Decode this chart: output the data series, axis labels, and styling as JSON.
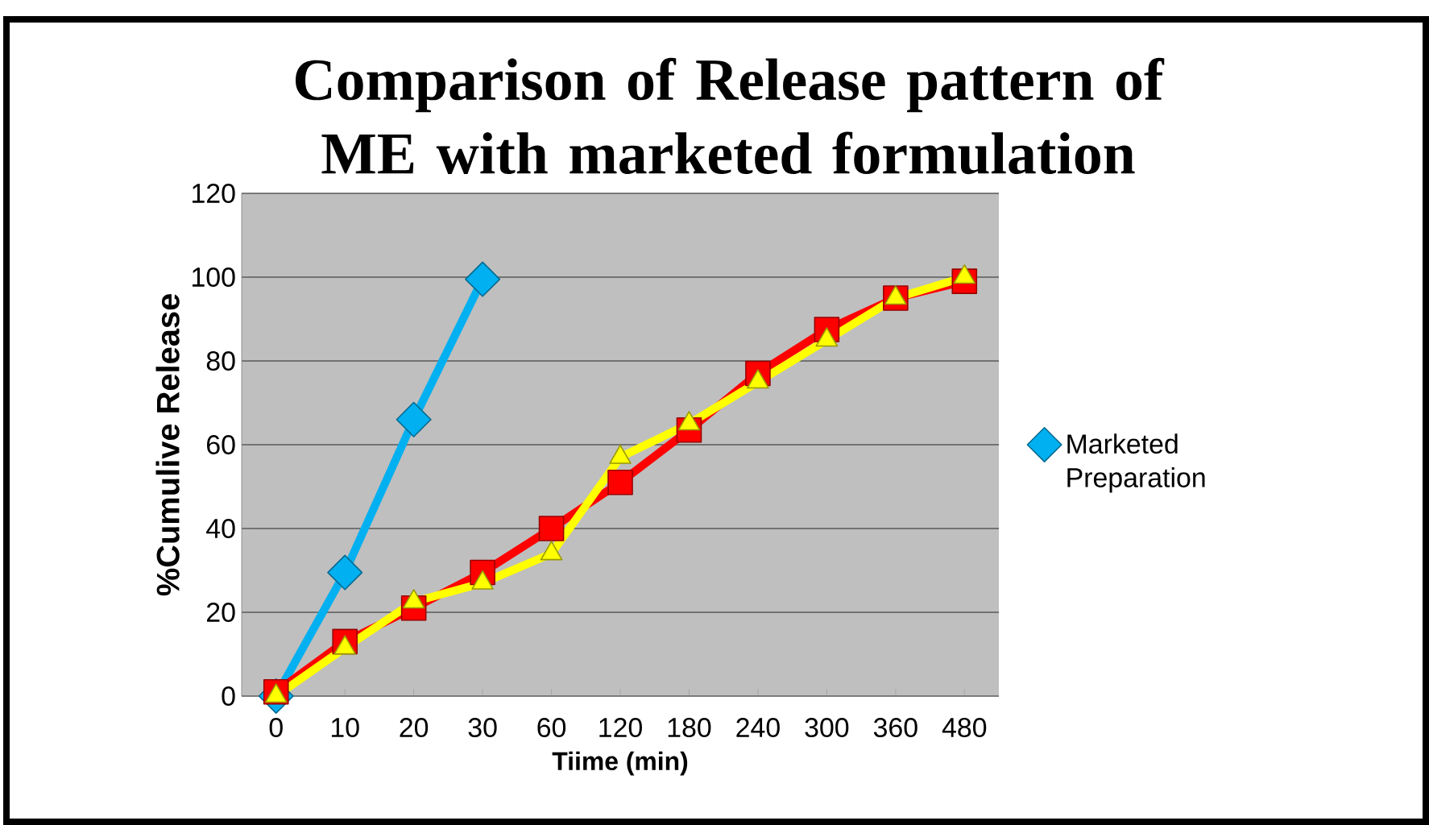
{
  "chart_data": {
    "type": "line",
    "title": "Comparison of Release pattern of ME with marketed formulation",
    "xlabel": "Tiime (min)",
    "ylabel": "%Cumulive Release",
    "categories": [
      "0",
      "10",
      "20",
      "30",
      "60",
      "120",
      "180",
      "240",
      "300",
      "360",
      "480"
    ],
    "series": [
      {
        "name": "Marketed Preparation",
        "color": "#00b0f0",
        "marker": "diamond",
        "values": [
          0,
          29.5,
          66,
          99.5,
          null,
          null,
          null,
          null,
          null,
          null,
          null
        ]
      },
      {
        "color": "#ff0000",
        "marker": "square",
        "values": [
          1,
          13,
          21,
          29.5,
          40,
          51,
          63.5,
          77,
          87.5,
          95,
          99
        ]
      },
      {
        "color": "#ffff00",
        "marker": "triangle",
        "values": [
          0,
          11.5,
          22.5,
          27,
          34,
          57,
          65,
          75,
          85,
          95,
          100
        ]
      }
    ],
    "ylim": [
      0,
      120
    ],
    "yticks": [
      0,
      20,
      40,
      60,
      80,
      100,
      120
    ],
    "grid": "y",
    "legend": "right"
  }
}
